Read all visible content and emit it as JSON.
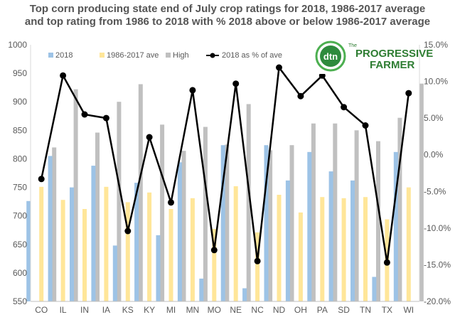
{
  "chart_data": {
    "type": "bar",
    "title": [
      "Top corn producing state end of July crop ratings for 2018, 1986-2017 average",
      "and top rating from 1986 to 2018 with % 2018 above or below 1986-2017 average"
    ],
    "categories": [
      "CO",
      "IL",
      "IN",
      "IA",
      "KS",
      "KY",
      "MI",
      "MN",
      "MO",
      "NE",
      "NC",
      "ND",
      "OH",
      "PA",
      "SD",
      "TN",
      "TX",
      "WI"
    ],
    "series": [
      {
        "name": "2018",
        "kind": "bar",
        "axis": "left",
        "color": "#9dc3e6",
        "values": [
          726,
          805,
          750,
          788,
          648,
          758,
          666,
          794,
          590,
          824,
          573,
          824,
          762,
          812,
          778,
          762,
          593,
          812
        ]
      },
      {
        "name": "1986-2017 ave",
        "kind": "bar",
        "axis": "left",
        "color": "#ffe699",
        "values": [
          751,
          728,
          712,
          751,
          724,
          741,
          712,
          731,
          677,
          752,
          671,
          737,
          706,
          733,
          731,
          733,
          694,
          750
        ]
      },
      {
        "name": "High",
        "kind": "bar",
        "axis": "left",
        "color": "#c0c0c0",
        "values": [
          820,
          922,
          846,
          900,
          931,
          860,
          814,
          856,
          825,
          896,
          815,
          824,
          862,
          862,
          850,
          831,
          872,
          932
        ]
      },
      {
        "name": "2018 as % of ave",
        "kind": "line",
        "axis": "right",
        "color": "#000000",
        "values": [
          -3.3,
          10.8,
          5.5,
          5.0,
          -10.4,
          2.4,
          -6.5,
          8.8,
          -13.0,
          9.7,
          -14.5,
          11.9,
          8.0,
          10.8,
          6.5,
          4.0,
          -14.7,
          8.4
        ]
      }
    ],
    "left_axis": {
      "min": 550,
      "max": 1000,
      "step": 50,
      "ticks": [
        "550",
        "600",
        "650",
        "700",
        "750",
        "800",
        "850",
        "900",
        "950",
        "1000"
      ]
    },
    "right_axis": {
      "min": -20,
      "max": 15,
      "step": 5,
      "ticks": [
        "-20.0%",
        "-15.0%",
        "-10.0%",
        "-5.0%",
        "0.0%",
        "5.0%",
        "10.0%",
        "15.0%"
      ]
    },
    "grid": false,
    "legend_position": "top-left"
  },
  "logo": {
    "badge": "dtn",
    "brand_line1": "The",
    "brand_line2": "PROGRESSIVE",
    "brand_line3": "FARMER"
  }
}
